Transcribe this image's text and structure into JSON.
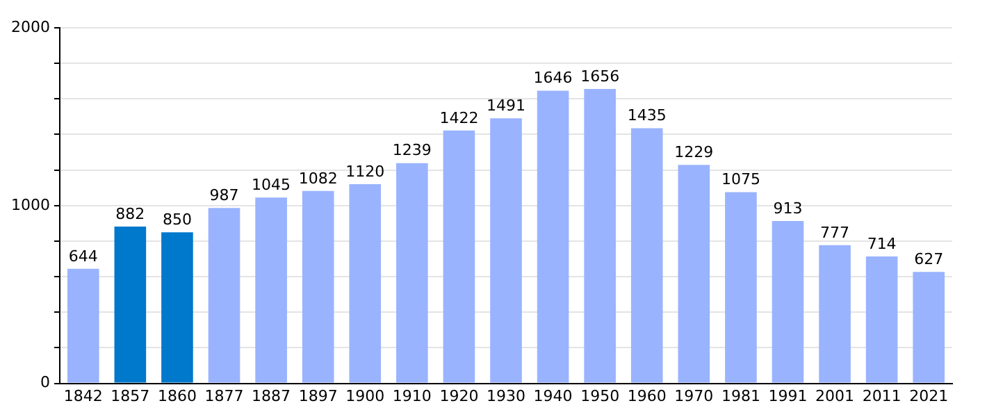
{
  "chart_data": {
    "type": "bar",
    "categories": [
      "1842",
      "1857",
      "1860",
      "1877",
      "1887",
      "1897",
      "1900",
      "1910",
      "1920",
      "1930",
      "1940",
      "1950",
      "1960",
      "1970",
      "1981",
      "1991",
      "2001",
      "2011",
      "2021"
    ],
    "values": [
      644,
      882,
      850,
      987,
      1045,
      1082,
      1120,
      1239,
      1422,
      1491,
      1646,
      1656,
      1435,
      1229,
      1075,
      913,
      777,
      714,
      627
    ],
    "colors": [
      "#99b3ff",
      "#0078cc",
      "#0078cc",
      "#99b3ff",
      "#99b3ff",
      "#99b3ff",
      "#99b3ff",
      "#99b3ff",
      "#99b3ff",
      "#99b3ff",
      "#99b3ff",
      "#99b3ff",
      "#99b3ff",
      "#99b3ff",
      "#99b3ff",
      "#99b3ff",
      "#99b3ff",
      "#99b3ff",
      "#99b3ff"
    ],
    "ylim": [
      0,
      2000
    ],
    "yticks": [
      0,
      {
        "value": 200,
        "label": null
      },
      {
        "value": 400,
        "label": null
      },
      {
        "value": 600,
        "label": null
      },
      {
        "value": 800,
        "label": null
      },
      1000,
      {
        "value": 1200,
        "label": null
      },
      {
        "value": 1400,
        "label": null
      },
      {
        "value": 1600,
        "label": null
      },
      {
        "value": 1800,
        "label": null
      },
      2000
    ],
    "grid": "y",
    "data_labels": true,
    "legend": false
  }
}
